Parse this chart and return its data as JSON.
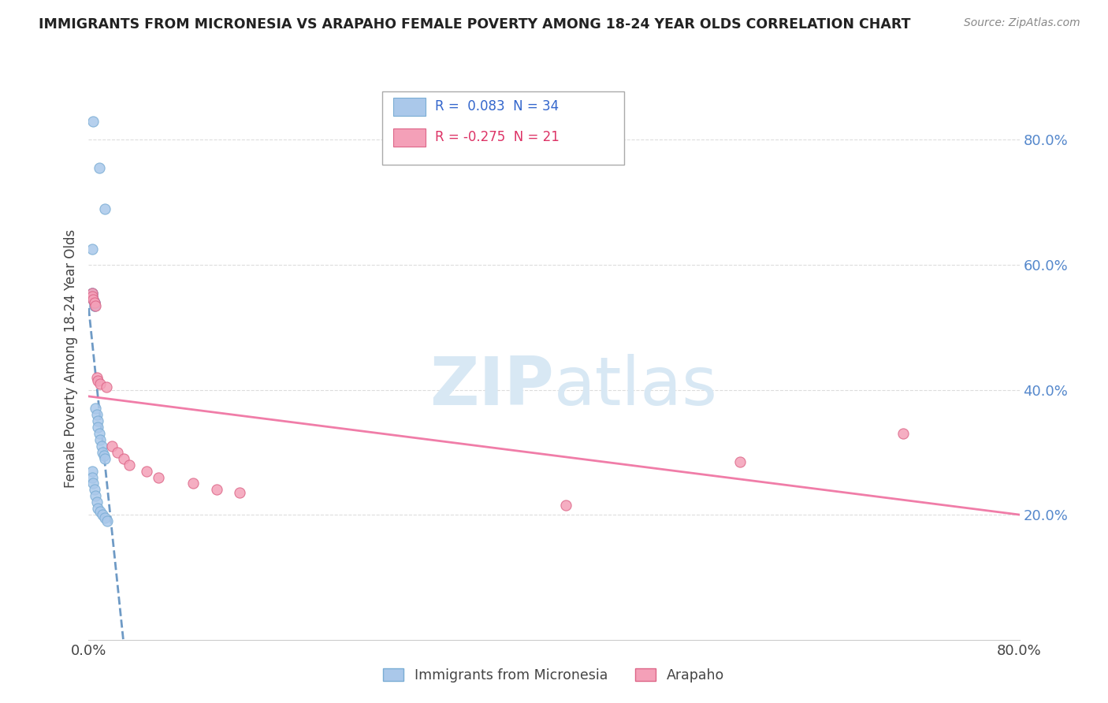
{
  "title": "IMMIGRANTS FROM MICRONESIA VS ARAPAHO FEMALE POVERTY AMONG 18-24 YEAR OLDS CORRELATION CHART",
  "source": "Source: ZipAtlas.com",
  "ylabel": "Female Poverty Among 18-24 Year Olds",
  "xlim": [
    0.0,
    0.8
  ],
  "ylim": [
    0.0,
    0.9
  ],
  "xticks": [
    0.0,
    0.8
  ],
  "xtick_labels": [
    "0.0%",
    "80.0%"
  ],
  "yticks": [
    0.2,
    0.4,
    0.6,
    0.8
  ],
  "ytick_labels": [
    "20.0%",
    "40.0%",
    "60.0%",
    "80.0%"
  ],
  "background_color": "#ffffff",
  "grid_color": "#dddddd",
  "watermark": "ZIPatlas",
  "series": [
    {
      "name": "Immigrants from Micronesia",
      "color": "#aac8ea",
      "edge_color": "#7aadd4",
      "trend_color": "#5588bb",
      "trend_style": "--",
      "R": 0.083,
      "N": 34,
      "x": [
        0.004,
        0.009,
        0.014,
        0.003,
        0.003,
        0.003,
        0.003,
        0.004,
        0.004,
        0.005,
        0.005,
        0.005,
        0.005,
        0.006,
        0.007,
        0.008,
        0.008,
        0.009,
        0.01,
        0.011,
        0.012,
        0.013,
        0.014,
        0.003,
        0.003,
        0.004,
        0.005,
        0.006,
        0.007,
        0.008,
        0.01,
        0.012,
        0.014,
        0.016
      ],
      "y": [
        0.83,
        0.755,
        0.69,
        0.625,
        0.555,
        0.555,
        0.55,
        0.545,
        0.545,
        0.54,
        0.54,
        0.535,
        0.535,
        0.37,
        0.36,
        0.35,
        0.34,
        0.33,
        0.32,
        0.31,
        0.3,
        0.295,
        0.29,
        0.27,
        0.26,
        0.25,
        0.24,
        0.23,
        0.22,
        0.21,
        0.205,
        0.2,
        0.195,
        0.19
      ]
    },
    {
      "name": "Arapaho",
      "color": "#f4a0b8",
      "edge_color": "#dd6688",
      "trend_color": "#ee6699",
      "trend_style": "-",
      "R": -0.275,
      "N": 21,
      "x": [
        0.003,
        0.003,
        0.004,
        0.005,
        0.006,
        0.007,
        0.008,
        0.01,
        0.015,
        0.02,
        0.025,
        0.03,
        0.035,
        0.05,
        0.06,
        0.09,
        0.11,
        0.13,
        0.41,
        0.56,
        0.7
      ],
      "y": [
        0.555,
        0.55,
        0.545,
        0.54,
        0.535,
        0.42,
        0.415,
        0.41,
        0.405,
        0.31,
        0.3,
        0.29,
        0.28,
        0.27,
        0.26,
        0.25,
        0.24,
        0.235,
        0.215,
        0.285,
        0.33
      ]
    }
  ]
}
